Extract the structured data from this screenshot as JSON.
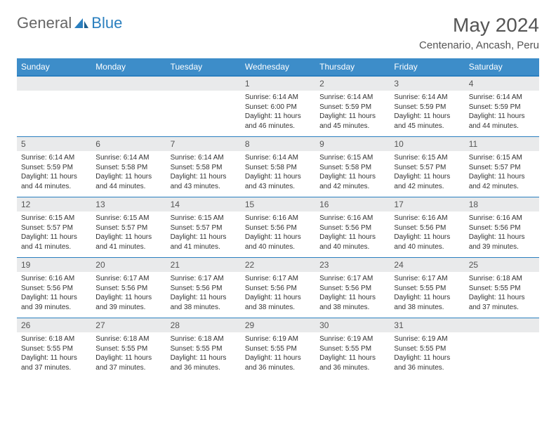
{
  "brand": {
    "part1": "General",
    "part2": "Blue",
    "icon_color": "#2a7fbf"
  },
  "title": "May 2024",
  "location": "Centenario, Ancash, Peru",
  "colors": {
    "header_bg": "#3d8dc9",
    "border": "#2a7fbf",
    "daybar": "#e9eaeb",
    "text": "#333"
  },
  "weekdays": [
    "Sunday",
    "Monday",
    "Tuesday",
    "Wednesday",
    "Thursday",
    "Friday",
    "Saturday"
  ],
  "weeks": [
    [
      null,
      null,
      null,
      {
        "n": "1",
        "sr": "6:14 AM",
        "ss": "6:00 PM",
        "dl": "11 hours and 46 minutes."
      },
      {
        "n": "2",
        "sr": "6:14 AM",
        "ss": "5:59 PM",
        "dl": "11 hours and 45 minutes."
      },
      {
        "n": "3",
        "sr": "6:14 AM",
        "ss": "5:59 PM",
        "dl": "11 hours and 45 minutes."
      },
      {
        "n": "4",
        "sr": "6:14 AM",
        "ss": "5:59 PM",
        "dl": "11 hours and 44 minutes."
      }
    ],
    [
      {
        "n": "5",
        "sr": "6:14 AM",
        "ss": "5:59 PM",
        "dl": "11 hours and 44 minutes."
      },
      {
        "n": "6",
        "sr": "6:14 AM",
        "ss": "5:58 PM",
        "dl": "11 hours and 44 minutes."
      },
      {
        "n": "7",
        "sr": "6:14 AM",
        "ss": "5:58 PM",
        "dl": "11 hours and 43 minutes."
      },
      {
        "n": "8",
        "sr": "6:14 AM",
        "ss": "5:58 PM",
        "dl": "11 hours and 43 minutes."
      },
      {
        "n": "9",
        "sr": "6:15 AM",
        "ss": "5:58 PM",
        "dl": "11 hours and 42 minutes."
      },
      {
        "n": "10",
        "sr": "6:15 AM",
        "ss": "5:57 PM",
        "dl": "11 hours and 42 minutes."
      },
      {
        "n": "11",
        "sr": "6:15 AM",
        "ss": "5:57 PM",
        "dl": "11 hours and 42 minutes."
      }
    ],
    [
      {
        "n": "12",
        "sr": "6:15 AM",
        "ss": "5:57 PM",
        "dl": "11 hours and 41 minutes."
      },
      {
        "n": "13",
        "sr": "6:15 AM",
        "ss": "5:57 PM",
        "dl": "11 hours and 41 minutes."
      },
      {
        "n": "14",
        "sr": "6:15 AM",
        "ss": "5:57 PM",
        "dl": "11 hours and 41 minutes."
      },
      {
        "n": "15",
        "sr": "6:16 AM",
        "ss": "5:56 PM",
        "dl": "11 hours and 40 minutes."
      },
      {
        "n": "16",
        "sr": "6:16 AM",
        "ss": "5:56 PM",
        "dl": "11 hours and 40 minutes."
      },
      {
        "n": "17",
        "sr": "6:16 AM",
        "ss": "5:56 PM",
        "dl": "11 hours and 40 minutes."
      },
      {
        "n": "18",
        "sr": "6:16 AM",
        "ss": "5:56 PM",
        "dl": "11 hours and 39 minutes."
      }
    ],
    [
      {
        "n": "19",
        "sr": "6:16 AM",
        "ss": "5:56 PM",
        "dl": "11 hours and 39 minutes."
      },
      {
        "n": "20",
        "sr": "6:17 AM",
        "ss": "5:56 PM",
        "dl": "11 hours and 39 minutes."
      },
      {
        "n": "21",
        "sr": "6:17 AM",
        "ss": "5:56 PM",
        "dl": "11 hours and 38 minutes."
      },
      {
        "n": "22",
        "sr": "6:17 AM",
        "ss": "5:56 PM",
        "dl": "11 hours and 38 minutes."
      },
      {
        "n": "23",
        "sr": "6:17 AM",
        "ss": "5:56 PM",
        "dl": "11 hours and 38 minutes."
      },
      {
        "n": "24",
        "sr": "6:17 AM",
        "ss": "5:55 PM",
        "dl": "11 hours and 38 minutes."
      },
      {
        "n": "25",
        "sr": "6:18 AM",
        "ss": "5:55 PM",
        "dl": "11 hours and 37 minutes."
      }
    ],
    [
      {
        "n": "26",
        "sr": "6:18 AM",
        "ss": "5:55 PM",
        "dl": "11 hours and 37 minutes."
      },
      {
        "n": "27",
        "sr": "6:18 AM",
        "ss": "5:55 PM",
        "dl": "11 hours and 37 minutes."
      },
      {
        "n": "28",
        "sr": "6:18 AM",
        "ss": "5:55 PM",
        "dl": "11 hours and 36 minutes."
      },
      {
        "n": "29",
        "sr": "6:19 AM",
        "ss": "5:55 PM",
        "dl": "11 hours and 36 minutes."
      },
      {
        "n": "30",
        "sr": "6:19 AM",
        "ss": "5:55 PM",
        "dl": "11 hours and 36 minutes."
      },
      {
        "n": "31",
        "sr": "6:19 AM",
        "ss": "5:55 PM",
        "dl": "11 hours and 36 minutes."
      },
      null
    ]
  ],
  "labels": {
    "sunrise": "Sunrise:",
    "sunset": "Sunset:",
    "daylight": "Daylight:"
  }
}
